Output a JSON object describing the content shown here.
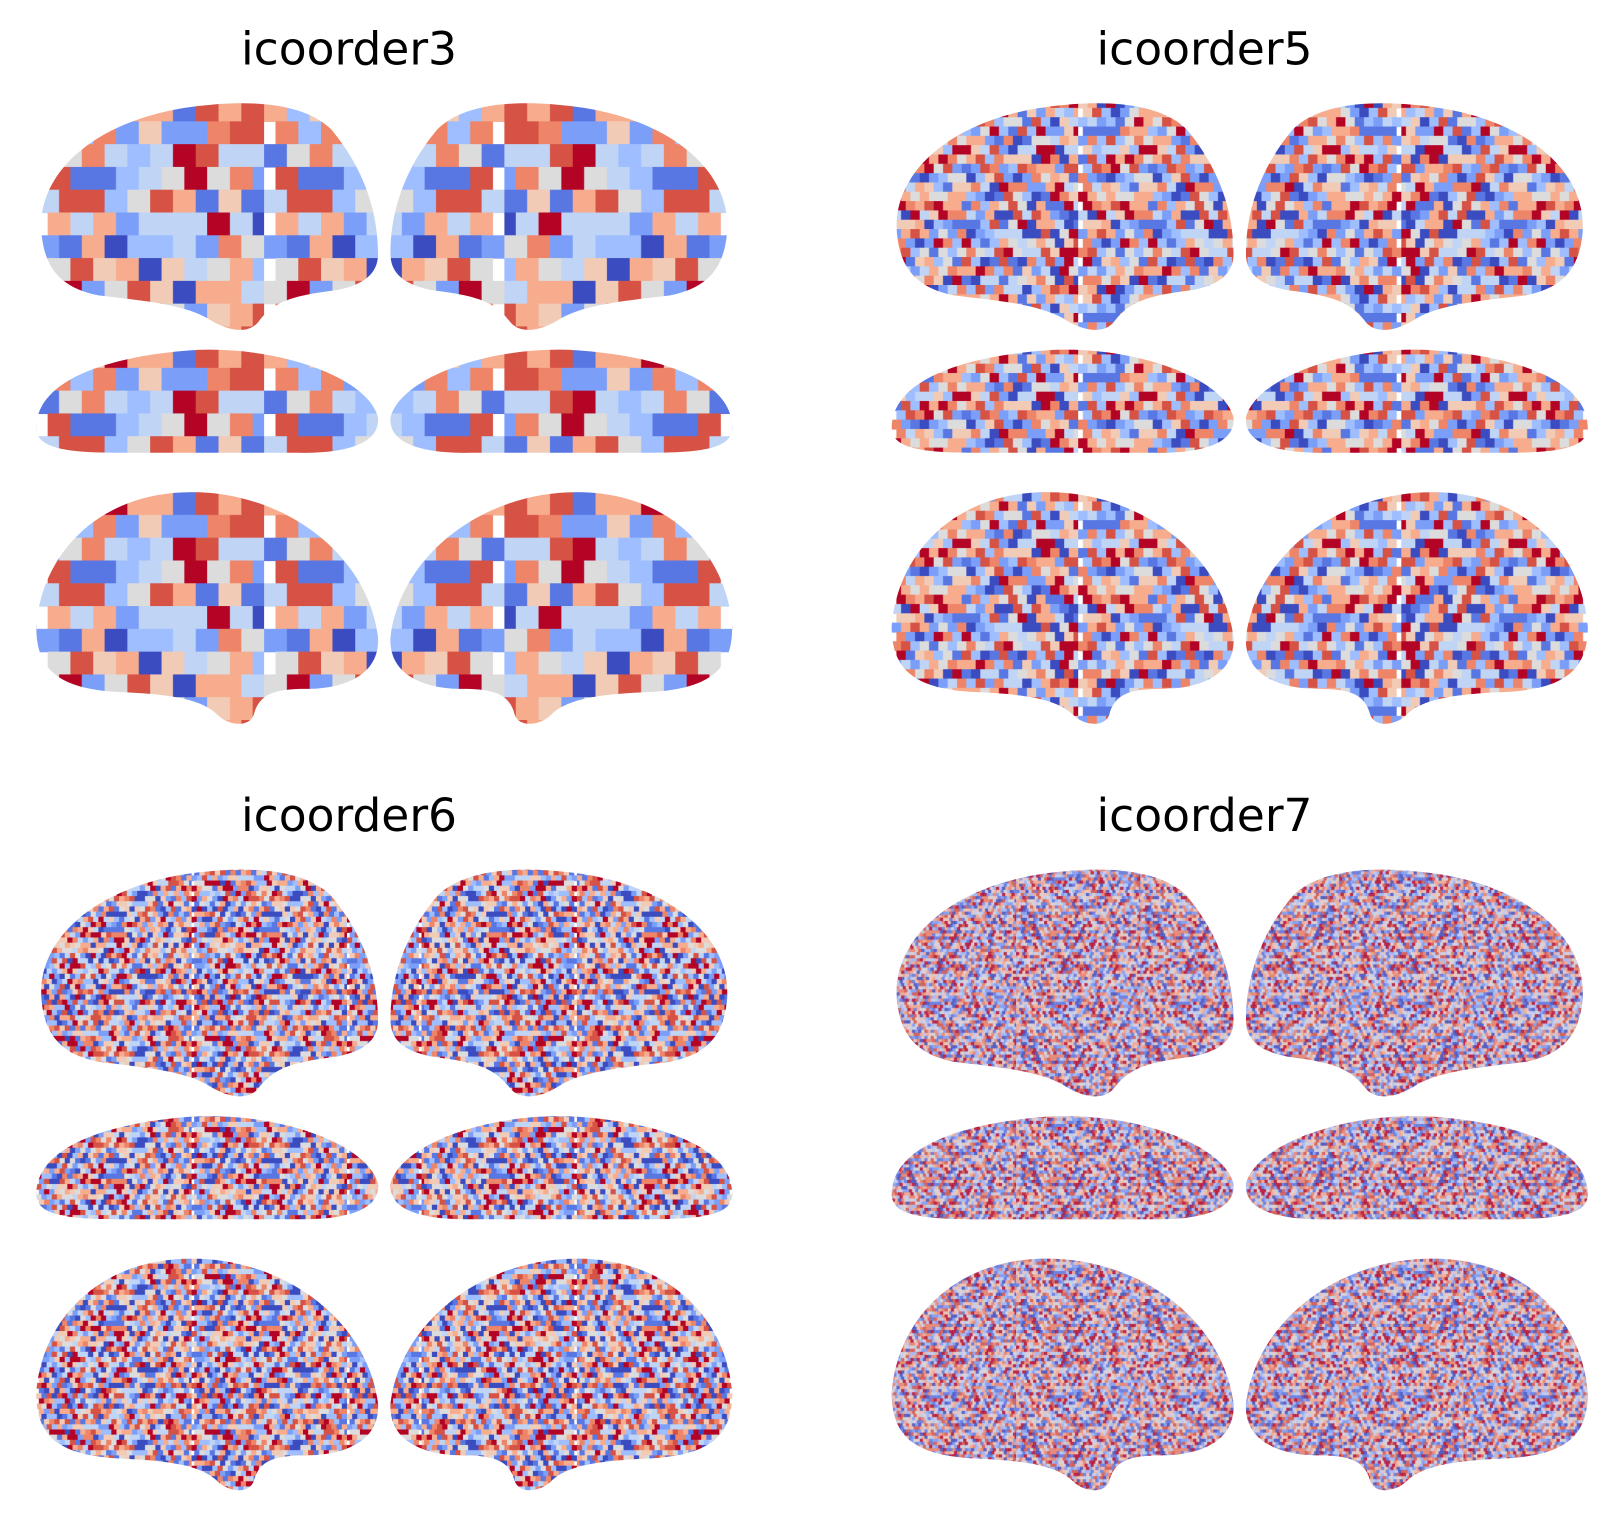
{
  "panels": [
    {
      "title": "icoorder3"
    },
    {
      "title": "icoorder5"
    },
    {
      "title": "icoorder6"
    },
    {
      "title": "icoorder7"
    }
  ]
}
